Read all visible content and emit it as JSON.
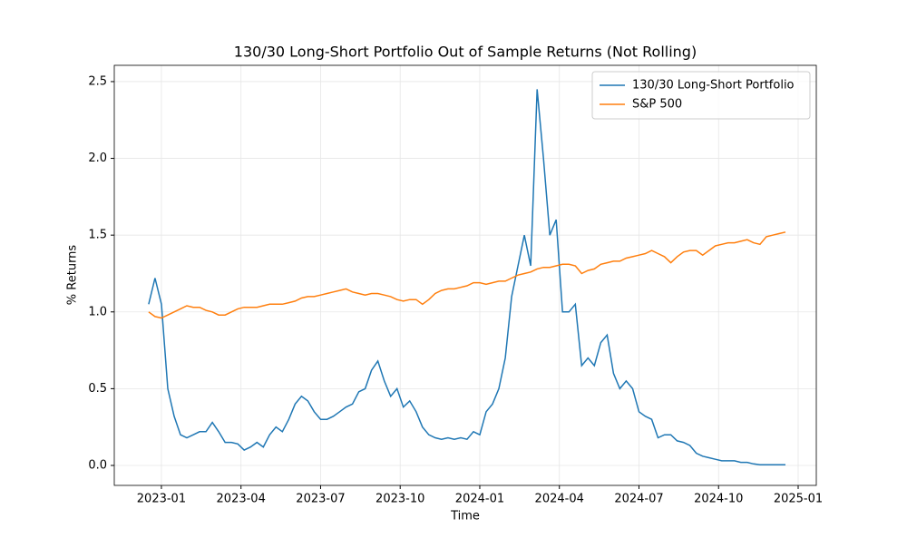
{
  "chart_data": {
    "type": "line",
    "title": "130/30 Long-Short Portfolio Out of Sample Returns (Not Rolling)",
    "x_label": "Time",
    "y_label": "% Returns",
    "x": [
      2022.96,
      2022.98,
      2023.0,
      2023.02,
      2023.04,
      2023.06,
      2023.08,
      2023.1,
      2023.12,
      2023.14,
      2023.16,
      2023.18,
      2023.2,
      2023.22,
      2023.24,
      2023.26,
      2023.28,
      2023.3,
      2023.32,
      2023.34,
      2023.36,
      2023.38,
      2023.4,
      2023.42,
      2023.44,
      2023.46,
      2023.48,
      2023.5,
      2023.52,
      2023.54,
      2023.56,
      2023.58,
      2023.6,
      2023.62,
      2023.64,
      2023.66,
      2023.68,
      2023.7,
      2023.72,
      2023.74,
      2023.76,
      2023.78,
      2023.8,
      2023.82,
      2023.84,
      2023.86,
      2023.88,
      2023.9,
      2023.92,
      2023.94,
      2023.96,
      2023.98,
      2024.0,
      2024.02,
      2024.04,
      2024.06,
      2024.08,
      2024.1,
      2024.12,
      2024.14,
      2024.16,
      2024.18,
      2024.2,
      2024.22,
      2024.24,
      2024.26,
      2024.28,
      2024.3,
      2024.32,
      2024.34,
      2024.36,
      2024.38,
      2024.4,
      2024.42,
      2024.44,
      2024.46,
      2024.48,
      2024.5,
      2024.52,
      2024.54,
      2024.56,
      2024.58,
      2024.6,
      2024.62,
      2024.64,
      2024.66,
      2024.68,
      2024.7,
      2024.72,
      2024.74,
      2024.76,
      2024.78,
      2024.8,
      2024.82,
      2024.84,
      2024.86,
      2024.88,
      2024.9,
      2024.92,
      2024.94,
      2024.96
    ],
    "series": [
      {
        "name": "130/30 Long-Short Portfolio",
        "color": "#1f77b4",
        "values": [
          1.05,
          1.22,
          1.05,
          0.5,
          0.32,
          0.2,
          0.18,
          0.2,
          0.22,
          0.22,
          0.28,
          0.22,
          0.15,
          0.15,
          0.14,
          0.1,
          0.12,
          0.15,
          0.12,
          0.2,
          0.25,
          0.22,
          0.3,
          0.4,
          0.45,
          0.42,
          0.35,
          0.3,
          0.3,
          0.32,
          0.35,
          0.38,
          0.4,
          0.48,
          0.5,
          0.62,
          0.68,
          0.55,
          0.45,
          0.5,
          0.38,
          0.42,
          0.35,
          0.25,
          0.2,
          0.18,
          0.17,
          0.18,
          0.17,
          0.18,
          0.17,
          0.22,
          0.2,
          0.35,
          0.4,
          0.5,
          0.7,
          1.1,
          1.3,
          1.5,
          1.3,
          2.45,
          2.0,
          1.5,
          1.6,
          1.0,
          1.0,
          1.05,
          0.65,
          0.7,
          0.65,
          0.8,
          0.85,
          0.6,
          0.5,
          0.55,
          0.5,
          0.35,
          0.32,
          0.3,
          0.18,
          0.2,
          0.2,
          0.16,
          0.15,
          0.13,
          0.08,
          0.06,
          0.05,
          0.04,
          0.03,
          0.03,
          0.03,
          0.02,
          0.02,
          0.01,
          0.005,
          0.005,
          0.005,
          0.005,
          0.005
        ]
      },
      {
        "name": "S&P 500",
        "color": "#ff7f0e",
        "values": [
          1.0,
          0.97,
          0.96,
          0.98,
          1.0,
          1.02,
          1.04,
          1.03,
          1.03,
          1.01,
          1.0,
          0.98,
          0.98,
          1.0,
          1.02,
          1.03,
          1.03,
          1.03,
          1.04,
          1.05,
          1.05,
          1.05,
          1.06,
          1.07,
          1.09,
          1.1,
          1.1,
          1.11,
          1.12,
          1.13,
          1.14,
          1.15,
          1.13,
          1.12,
          1.11,
          1.12,
          1.12,
          1.11,
          1.1,
          1.08,
          1.07,
          1.08,
          1.08,
          1.05,
          1.08,
          1.12,
          1.14,
          1.15,
          1.15,
          1.16,
          1.17,
          1.19,
          1.19,
          1.18,
          1.19,
          1.2,
          1.2,
          1.22,
          1.24,
          1.25,
          1.26,
          1.28,
          1.29,
          1.29,
          1.3,
          1.31,
          1.31,
          1.3,
          1.25,
          1.27,
          1.28,
          1.31,
          1.32,
          1.33,
          1.33,
          1.35,
          1.36,
          1.37,
          1.38,
          1.4,
          1.38,
          1.36,
          1.32,
          1.36,
          1.39,
          1.4,
          1.4,
          1.37,
          1.4,
          1.43,
          1.44,
          1.45,
          1.45,
          1.46,
          1.47,
          1.45,
          1.44,
          1.49,
          1.5,
          1.51,
          1.52
        ]
      }
    ],
    "xlim": [
      2022.852,
      2025.057
    ],
    "xticks": [
      {
        "value": 2023.0,
        "label": "2023-01"
      },
      {
        "value": 2023.25,
        "label": "2023-04"
      },
      {
        "value": 2023.5,
        "label": "2023-07"
      },
      {
        "value": 2023.75,
        "label": "2023-10"
      },
      {
        "value": 2024.0,
        "label": "2024-01"
      },
      {
        "value": 2024.25,
        "label": "2024-04"
      },
      {
        "value": 2024.5,
        "label": "2024-07"
      },
      {
        "value": 2024.75,
        "label": "2024-10"
      },
      {
        "value": 2025.0,
        "label": "2025-01"
      }
    ],
    "ylim": [
      -0.13,
      2.606
    ],
    "yticks": [
      {
        "value": 0,
        "label": "0.0"
      },
      0.5,
      {
        "value": 1,
        "label": "1.0"
      },
      1.5,
      {
        "value": 2,
        "label": "2.0"
      },
      2.5
    ],
    "grid": true,
    "legend": "upper right"
  }
}
